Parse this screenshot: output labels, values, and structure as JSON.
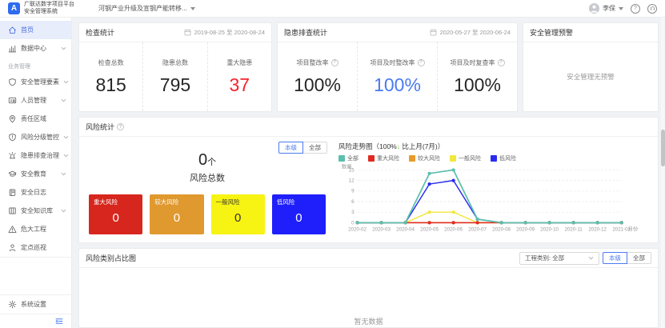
{
  "header": {
    "logo_letter": "A",
    "app_title_line1": "广联达数字项目平台",
    "app_title_line2": "安全管理系统",
    "project_selector": "河钢产业升级及宣钢产能转移...",
    "user_name": "李保"
  },
  "sidebar": {
    "section_label": "业务管理",
    "items": [
      {
        "key": "home",
        "label": "首页",
        "icon": "home-icon",
        "active": true,
        "has_children": false
      },
      {
        "key": "data-center",
        "label": "数据中心",
        "icon": "bar-chart-icon",
        "has_children": true
      },
      {
        "key": "safety-elements",
        "label": "安全管理要素",
        "icon": "shield-icon",
        "has_children": true,
        "section_before": true
      },
      {
        "key": "personnel",
        "label": "人员管理",
        "icon": "id-card-icon",
        "has_children": true
      },
      {
        "key": "responsibility-area",
        "label": "责任区域",
        "icon": "location-icon",
        "has_children": false
      },
      {
        "key": "risk-control",
        "label": "风险分级管控",
        "icon": "badge-icon",
        "has_children": true
      },
      {
        "key": "hazard-investigation",
        "label": "隐患排查治理",
        "icon": "alarm-icon",
        "has_children": true
      },
      {
        "key": "safety-education",
        "label": "安全教育",
        "icon": "education-icon",
        "has_children": true
      },
      {
        "key": "safety-log",
        "label": "安全日志",
        "icon": "notebook-icon",
        "has_children": false
      },
      {
        "key": "knowledge-base",
        "label": "安全知识库",
        "icon": "library-icon",
        "has_children": true
      },
      {
        "key": "danger-project",
        "label": "危大工程",
        "icon": "warning-triangle-icon",
        "has_children": false
      },
      {
        "key": "patrol",
        "label": "定点巡视",
        "icon": "person-icon",
        "has_children": false
      }
    ],
    "settings_label": "系统设置"
  },
  "cards": {
    "inspection": {
      "title": "检查统计",
      "date_range": "2019-08-25 至 2020-08-24",
      "stats": [
        {
          "label": "检查总数",
          "value": "815"
        },
        {
          "label": "隐患总数",
          "value": "795"
        },
        {
          "label": "重大隐患",
          "value": "37"
        }
      ]
    },
    "hazard": {
      "title": "隐患排查统计",
      "date_range": "2020-05-27 至 2020-06-24",
      "stats": [
        {
          "label": "项目整改率",
          "value": "100%"
        },
        {
          "label": "项目及时整改率",
          "value": "100%"
        },
        {
          "label": "项目及时复查率",
          "value": "100%"
        }
      ]
    },
    "warning": {
      "title": "安全管理预警",
      "empty_text": "安全管理无预警"
    }
  },
  "risk_section": {
    "title": "风险统计",
    "toggle": {
      "options": [
        "本级",
        "全部"
      ],
      "selected": "本级"
    },
    "total": {
      "value": "0",
      "unit": "个",
      "label": "风险总数"
    },
    "boxes": [
      {
        "label": "重大风险",
        "value": "0",
        "color": "#d7261d",
        "text": "#ffffff"
      },
      {
        "label": "较大风险",
        "value": "0",
        "color": "#e0992e",
        "text": "#ffffff"
      },
      {
        "label": "一般风险",
        "value": "0",
        "color": "#f7f312",
        "text": "#333333"
      },
      {
        "label": "低风险",
        "value": "0",
        "color": "#1f1ffc",
        "text": "#ffffff"
      }
    ],
    "trend": {
      "title_prefix": "风险走势图（100%",
      "title_arrow": "↓",
      "title_suffix": " 比上月(7月)）"
    }
  },
  "chart_data": {
    "type": "line",
    "title": "风险走势图（100%↓ 比上月(7月)）",
    "xlabel": "月份",
    "ylabel": "数量",
    "ylim": [
      0,
      15
    ],
    "yticks": [
      0,
      3,
      6,
      9,
      12,
      15
    ],
    "grid": true,
    "legend_position": "top",
    "categories": [
      "2020-02",
      "2020-03",
      "2020-04",
      "2020-05",
      "2020-06",
      "2020-07",
      "2020-08",
      "2020-09",
      "2020-10",
      "2020-11",
      "2020-12",
      "2021-01"
    ],
    "series": [
      {
        "name": "全部",
        "color": "#5bbfad",
        "values": [
          0,
          0,
          0,
          14,
          15,
          1,
          0,
          0,
          0,
          0,
          0,
          0
        ]
      },
      {
        "name": "重大风险",
        "color": "#e02a21",
        "values": [
          0,
          0,
          0,
          0,
          0,
          0,
          0,
          0,
          0,
          0,
          0,
          0
        ]
      },
      {
        "name": "较大风险",
        "color": "#e89b2c",
        "values": [
          0,
          0,
          0,
          0,
          0,
          0,
          0,
          0,
          0,
          0,
          0,
          0
        ]
      },
      {
        "name": "一般风险",
        "color": "#f2e73b",
        "values": [
          0,
          0,
          0,
          3,
          3,
          0,
          0,
          0,
          0,
          0,
          0,
          0
        ]
      },
      {
        "name": "低风险",
        "color": "#2b2bf0",
        "values": [
          0,
          0,
          0,
          11,
          12,
          1,
          0,
          0,
          0,
          0,
          0,
          0
        ]
      }
    ],
    "draw_order": [
      2,
      3,
      4,
      1,
      0
    ]
  },
  "category_section": {
    "title": "风险类别占比图",
    "filter_label": "工程类别: 全部",
    "toggle": {
      "options": [
        "本级",
        "全部"
      ],
      "selected": "本级"
    },
    "empty_text": "暂无数据"
  }
}
